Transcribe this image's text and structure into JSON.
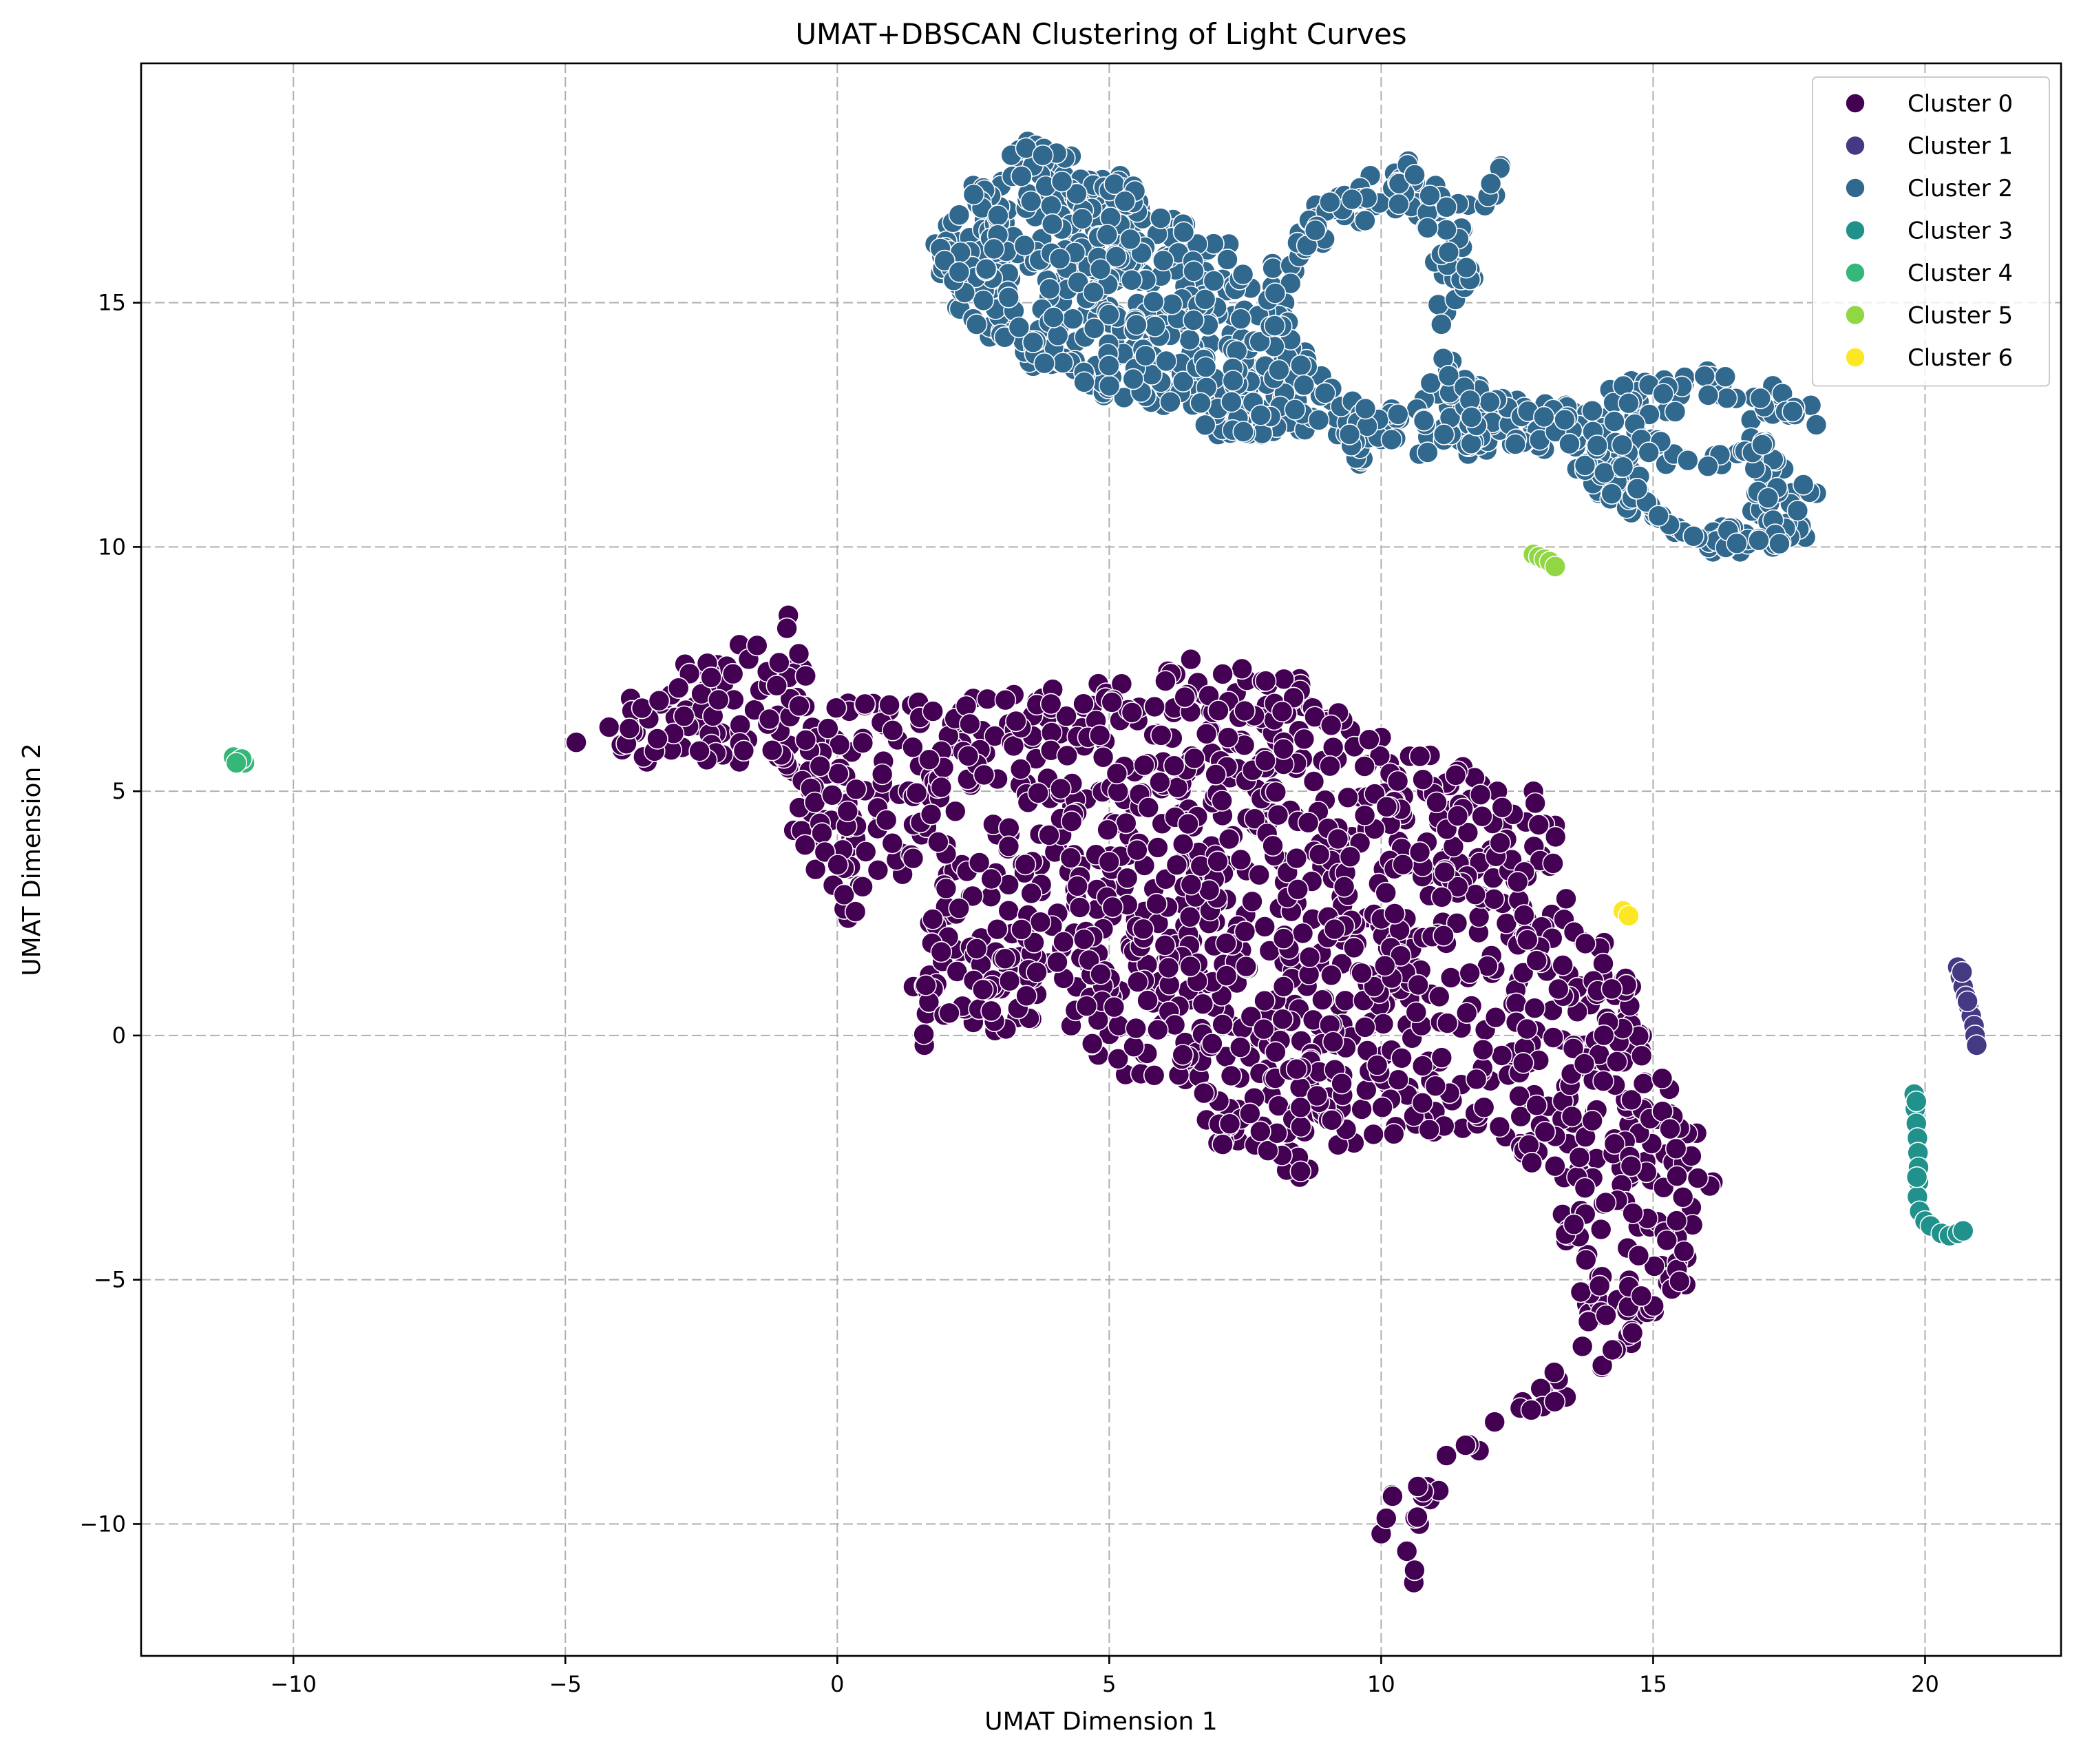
{
  "chart_data": {
    "type": "scatter",
    "title": "UMAT+DBSCAN Clustering of Light Curves",
    "xlabel": "UMAT Dimension 1",
    "ylabel": "UMAT Dimension 2",
    "xlim": [
      -12.8,
      22.5
    ],
    "ylim": [
      -12.7,
      19.9
    ],
    "xticks": [
      -10,
      -5,
      0,
      5,
      10,
      15,
      20
    ],
    "yticks": [
      -10,
      -5,
      0,
      5,
      10,
      15
    ],
    "xtick_labels": [
      "−10",
      "−5",
      "0",
      "5",
      "10",
      "15",
      "20"
    ],
    "ytick_labels": [
      "−10",
      "−5",
      "0",
      "5",
      "10",
      "15"
    ],
    "grid": true,
    "legend_position": "top-right",
    "series": [
      {
        "name": "Cluster 0",
        "color": "#440154",
        "outline": [
          [
            -4.8,
            6.0
          ],
          [
            -3.8,
            6.9
          ],
          [
            -2.8,
            7.6
          ],
          [
            -1.8,
            8.0
          ],
          [
            -0.9,
            8.6
          ],
          [
            -0.6,
            7.4
          ],
          [
            0.2,
            6.8
          ],
          [
            2.5,
            6.9
          ],
          [
            4.8,
            7.2
          ],
          [
            6.5,
            7.7
          ],
          [
            8.5,
            7.3
          ],
          [
            10.0,
            6.1
          ],
          [
            11.5,
            5.5
          ],
          [
            12.8,
            5.0
          ],
          [
            13.2,
            4.3
          ],
          [
            13.4,
            2.8
          ],
          [
            14.1,
            1.9
          ],
          [
            14.6,
            1.0
          ],
          [
            14.8,
            0.0
          ],
          [
            15.3,
            -1.1
          ],
          [
            15.8,
            -2.0
          ],
          [
            16.1,
            -3.0
          ],
          [
            15.6,
            -5.1
          ],
          [
            14.6,
            -6.3
          ],
          [
            13.4,
            -7.4
          ],
          [
            11.8,
            -8.5
          ],
          [
            10.9,
            -9.5
          ],
          [
            10.6,
            -11.2
          ],
          [
            10.0,
            -10.2
          ],
          [
            10.2,
            -9.4
          ],
          [
            11.2,
            -8.6
          ],
          [
            12.6,
            -7.5
          ],
          [
            13.8,
            -5.8
          ],
          [
            13.4,
            -4.2
          ],
          [
            12.6,
            -2.4
          ],
          [
            11.5,
            -1.9
          ],
          [
            9.5,
            -2.2
          ],
          [
            8.5,
            -2.9
          ],
          [
            7.0,
            -2.2
          ],
          [
            6.4,
            -0.9
          ],
          [
            5.3,
            -0.8
          ],
          [
            4.8,
            -0.4
          ],
          [
            4.3,
            0.2
          ],
          [
            2.9,
            0.1
          ],
          [
            1.6,
            -0.2
          ],
          [
            1.4,
            1.0
          ],
          [
            1.7,
            2.3
          ],
          [
            2.0,
            3.9
          ],
          [
            1.2,
            3.3
          ],
          [
            0.2,
            2.4
          ],
          [
            -0.4,
            3.4
          ],
          [
            -0.8,
            4.2
          ],
          [
            -0.8,
            5.4
          ],
          [
            -1.8,
            5.6
          ],
          [
            -3.5,
            5.6
          ]
        ],
        "holes": [
          [
            [
              2.0,
              4.5
            ],
            [
              2.3,
              3.9
            ],
            [
              2.8,
              3.6
            ],
            [
              2.9,
              4.2
            ],
            [
              2.4,
              4.6
            ]
          ]
        ],
        "n_points": 1500,
        "seed": 11
      },
      {
        "name": "Cluster 1",
        "color": "#443983",
        "points": [
          [
            20.6,
            1.4
          ],
          [
            20.65,
            1.2
          ],
          [
            20.7,
            1.0
          ],
          [
            20.75,
            0.8
          ],
          [
            20.8,
            0.6
          ],
          [
            20.85,
            0.4
          ],
          [
            20.9,
            0.2
          ],
          [
            20.92,
            0.0
          ],
          [
            20.95,
            -0.2
          ],
          [
            20.68,
            1.3
          ],
          [
            20.78,
            0.7
          ]
        ]
      },
      {
        "name": "Cluster 2",
        "color": "#31688e",
        "outline": [
          [
            1.8,
            16.2
          ],
          [
            2.5,
            17.4
          ],
          [
            3.5,
            18.3
          ],
          [
            4.3,
            18.0
          ],
          [
            5.2,
            17.6
          ],
          [
            6.4,
            16.6
          ],
          [
            7.2,
            16.2
          ],
          [
            7.6,
            15.3
          ],
          [
            8.0,
            15.8
          ],
          [
            8.8,
            17.0
          ],
          [
            9.8,
            17.6
          ],
          [
            10.5,
            17.9
          ],
          [
            11.0,
            17.4
          ],
          [
            11.6,
            17.0
          ],
          [
            12.2,
            17.8
          ],
          [
            12.1,
            17.2
          ],
          [
            11.5,
            16.5
          ],
          [
            11.7,
            15.5
          ],
          [
            11.2,
            14.8
          ],
          [
            11.3,
            13.8
          ],
          [
            11.8,
            13.3
          ],
          [
            12.5,
            13.0
          ],
          [
            13.4,
            12.9
          ],
          [
            14.6,
            13.4
          ],
          [
            16.0,
            13.6
          ],
          [
            17.2,
            13.3
          ],
          [
            17.9,
            12.9
          ],
          [
            18.0,
            12.5
          ],
          [
            17.5,
            12.7
          ],
          [
            16.8,
            12.6
          ],
          [
            17.4,
            11.6
          ],
          [
            18.0,
            11.1
          ],
          [
            17.8,
            10.2
          ],
          [
            17.2,
            10.0
          ],
          [
            16.6,
            9.9
          ],
          [
            16.1,
            9.9
          ],
          [
            15.4,
            10.3
          ],
          [
            14.6,
            10.7
          ],
          [
            14.0,
            11.1
          ],
          [
            13.6,
            11.6
          ],
          [
            13.0,
            12.0
          ],
          [
            12.4,
            12.1
          ],
          [
            11.6,
            11.9
          ],
          [
            10.7,
            11.9
          ],
          [
            10.0,
            12.2
          ],
          [
            9.6,
            11.7
          ],
          [
            9.2,
            12.3
          ],
          [
            8.5,
            12.4
          ],
          [
            7.8,
            12.3
          ],
          [
            7.0,
            12.3
          ],
          [
            6.0,
            12.9
          ],
          [
            4.9,
            13.1
          ],
          [
            3.6,
            13.7
          ],
          [
            2.8,
            14.3
          ],
          [
            2.2,
            14.9
          ],
          [
            1.9,
            15.6
          ]
        ],
        "holes": [
          [
            [
              8.3,
              15.0
            ],
            [
              8.8,
              16.0
            ],
            [
              9.5,
              16.6
            ],
            [
              10.4,
              16.8
            ],
            [
              10.9,
              16.4
            ],
            [
              11.0,
              15.0
            ],
            [
              11.0,
              13.8
            ],
            [
              10.6,
              13.0
            ],
            [
              9.9,
              12.8
            ],
            [
              9.2,
              13.2
            ],
            [
              8.7,
              13.8
            ]
          ],
          [
            [
              14.7,
              11.4
            ],
            [
              15.8,
              11.6
            ],
            [
              16.8,
              11.6
            ],
            [
              16.9,
              11.0
            ],
            [
              16.4,
              10.5
            ],
            [
              15.6,
              10.5
            ],
            [
              14.9,
              10.9
            ]
          ],
          [
            [
              14.9,
              12.7
            ],
            [
              15.8,
              12.8
            ],
            [
              16.6,
              12.9
            ],
            [
              16.9,
              12.4
            ],
            [
              16.4,
              12.0
            ],
            [
              15.5,
              12.0
            ],
            [
              14.9,
              12.3
            ]
          ]
        ],
        "n_points": 950,
        "seed": 23
      },
      {
        "name": "Cluster 3",
        "color": "#21918c",
        "points": [
          [
            19.8,
            -1.2
          ],
          [
            19.82,
            -1.5
          ],
          [
            19.84,
            -1.8
          ],
          [
            19.86,
            -2.1
          ],
          [
            19.87,
            -2.4
          ],
          [
            19.88,
            -2.7
          ],
          [
            19.88,
            -3.0
          ],
          [
            19.86,
            -3.3
          ],
          [
            19.9,
            -3.6
          ],
          [
            20.0,
            -3.8
          ],
          [
            20.1,
            -3.9
          ],
          [
            20.3,
            -4.05
          ],
          [
            20.45,
            -4.1
          ],
          [
            20.6,
            -4.05
          ],
          [
            20.7,
            -4.0
          ],
          [
            19.85,
            -2.9
          ],
          [
            19.84,
            -1.35
          ]
        ]
      },
      {
        "name": "Cluster 4",
        "color": "#35b779",
        "points": [
          [
            -11.1,
            5.7
          ],
          [
            -11.0,
            5.62
          ],
          [
            -10.9,
            5.58
          ],
          [
            -10.95,
            5.66
          ],
          [
            -11.05,
            5.58
          ]
        ]
      },
      {
        "name": "Cluster 5",
        "color": "#90d743",
        "points": [
          [
            12.8,
            9.85
          ],
          [
            12.9,
            9.8
          ],
          [
            13.0,
            9.75
          ],
          [
            13.1,
            9.7
          ],
          [
            13.2,
            9.6
          ]
        ]
      },
      {
        "name": "Cluster 6",
        "color": "#fde725",
        "points": [
          [
            14.45,
            2.55
          ],
          [
            14.55,
            2.45
          ]
        ]
      }
    ]
  }
}
